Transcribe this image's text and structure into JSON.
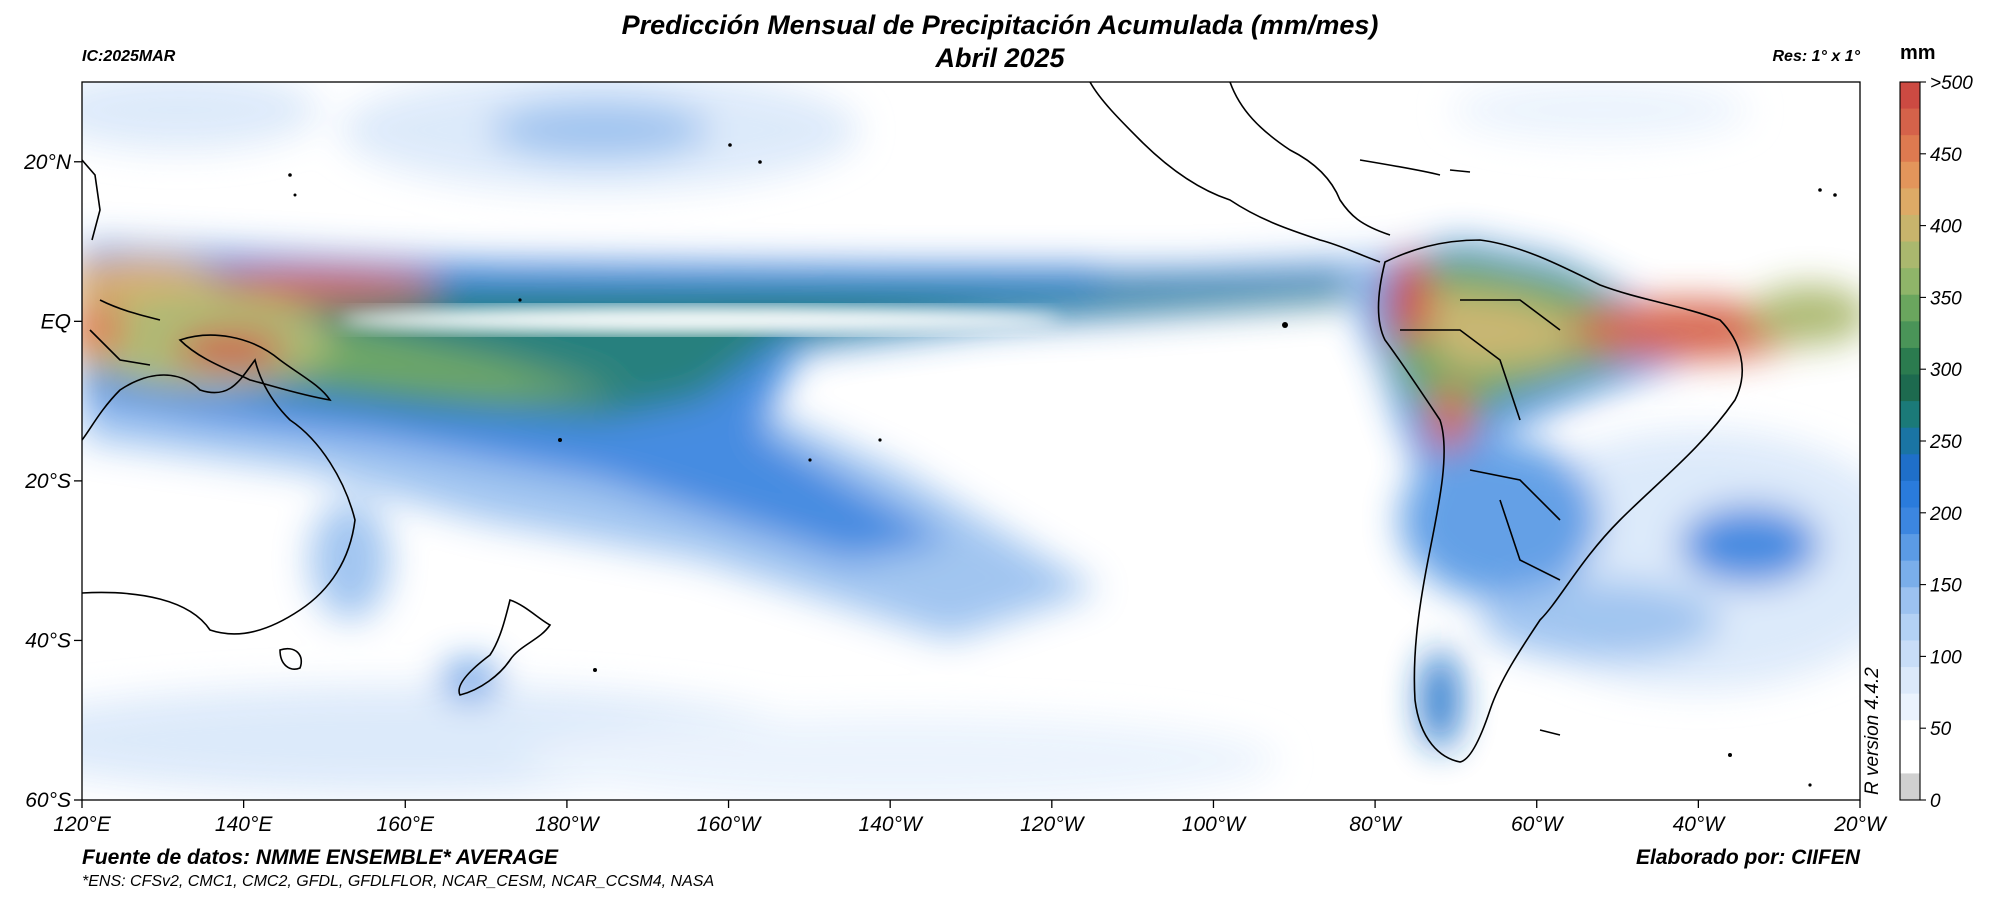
{
  "title": {
    "line1": "Predicción Mensual de Precipitación Acumulada (mm/mes)",
    "line2": "Abril 2025"
  },
  "header": {
    "initial_condition": "IC:2025MAR",
    "resolution": "Res: 1° x 1°"
  },
  "footer": {
    "source": "Fuente de datos: NMME ENSEMBLE* AVERAGE",
    "ensemble_members": "*ENS: CFSv2, CMC1, CMC2, GFDL, GFDLFLOR, NCAR_CESM, NCAR_CCSM4, NASA",
    "author": "Elaborado por: CIIFEN",
    "software": "R version 4.4.2"
  },
  "map": {
    "lon_labels": [
      "120°E",
      "140°E",
      "160°E",
      "180°W",
      "160°W",
      "140°W",
      "120°W",
      "100°W",
      "80°W",
      "60°W",
      "40°W",
      "20°W"
    ],
    "lat_labels": [
      "20°N",
      "EQ",
      "20°S",
      "40°S",
      "60°S"
    ],
    "lat_values": [
      20,
      0,
      -20,
      -40,
      -60
    ],
    "lon_range": [
      120,
      340
    ],
    "lat_range": [
      -60,
      30
    ]
  },
  "colorbar": {
    "unit": "mm",
    "tick_labels": [
      ">500",
      "450",
      "400",
      "350",
      "300",
      "250",
      "200",
      "150",
      "100",
      "50",
      "0"
    ],
    "colors": [
      "#d0d0d0",
      "#ffffff",
      "#ffffff",
      "#eaf3fd",
      "#dbe9fa",
      "#c8ddf7",
      "#b3d1f4",
      "#9cc2f0",
      "#7aaeea",
      "#5b9be5",
      "#3c86e0",
      "#2a7bdc",
      "#1f6fc9",
      "#1a74a4",
      "#1b7a78",
      "#1d6a4f",
      "#2b7b4f",
      "#4a9458",
      "#6aa65e",
      "#8fb569",
      "#aab86e",
      "#c8b46c",
      "#ddaa66",
      "#e3955b",
      "#de7a50",
      "#d5624a",
      "#cc4a42"
    ]
  }
}
